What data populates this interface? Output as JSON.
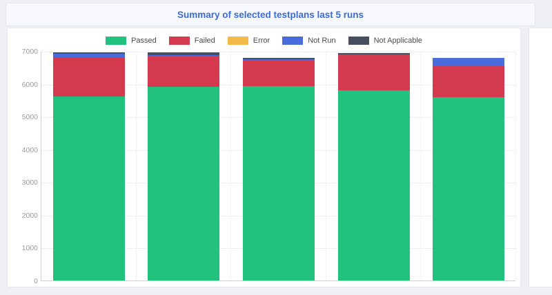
{
  "page": {
    "background": "#eef0f3"
  },
  "header": {
    "title": "Summary of selected testplans last 5 runs",
    "title_color": "#3b6bd5"
  },
  "chart_data": {
    "type": "bar",
    "stacked": true,
    "title": "Summary of selected testplans last 5 runs",
    "categories": [
      "",
      "",
      "",
      "",
      ""
    ],
    "series": [
      {
        "name": "Passed",
        "color": "#22c17e",
        "values": [
          5620,
          5910,
          5930,
          5800,
          5600
        ]
      },
      {
        "name": "Failed",
        "color": "#d4394d",
        "values": [
          1190,
          920,
          770,
          1090,
          950
        ]
      },
      {
        "name": "Error",
        "color": "#f3ba4a",
        "values": [
          0,
          0,
          0,
          0,
          0
        ]
      },
      {
        "name": "Not Run",
        "color": "#4a6cdb",
        "values": [
          105,
          40,
          55,
          10,
          230
        ]
      },
      {
        "name": "Not Applicable",
        "color": "#474e5d",
        "values": [
          40,
          85,
          30,
          30,
          20
        ]
      }
    ],
    "xlabel": "",
    "ylabel": "",
    "ylim": [
      0,
      7000
    ],
    "yticks": [
      0,
      1000,
      2000,
      3000,
      4000,
      5000,
      6000,
      7000
    ],
    "legend_position": "top",
    "grid": true,
    "axis_text_color": "#9b9b9b"
  }
}
